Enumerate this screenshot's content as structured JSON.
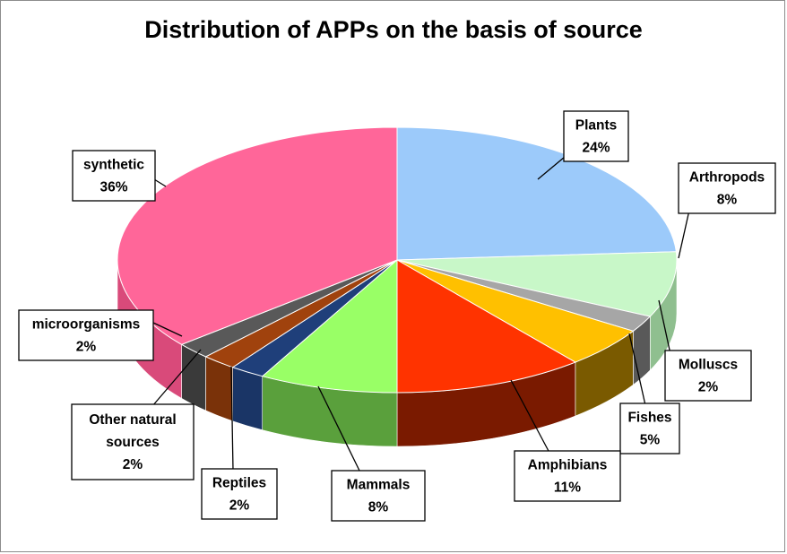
{
  "chart_data": {
    "type": "pie",
    "title": "Distribution of APPs on the basis of source",
    "slices": [
      {
        "label": "Plants",
        "value": 24,
        "percent_label": "24%",
        "color": "#9ccafa",
        "side_color": "#5f8fc4"
      },
      {
        "label": "Arthropods",
        "value": 8,
        "percent_label": "8%",
        "color": "#c8f7c8",
        "side_color": "#8fbf8f"
      },
      {
        "label": "Molluscs",
        "value": 2,
        "percent_label": "2%",
        "color": "#a6a6a6",
        "side_color": "#595959"
      },
      {
        "label": "Fishes",
        "value": 5,
        "percent_label": "5%",
        "color": "#ffc000",
        "side_color": "#7a5a00"
      },
      {
        "label": "Amphibians",
        "value": 11,
        "percent_label": "11%",
        "color": "#ff3300",
        "side_color": "#7a1a00"
      },
      {
        "label": "Mammals",
        "value": 8,
        "percent_label": "8%",
        "color": "#99ff66",
        "side_color": "#5aa03c"
      },
      {
        "label": "Reptiles",
        "value": 2,
        "percent_label": "2%",
        "color": "#1f3f7a",
        "side_color": "#1a3566"
      },
      {
        "label": "Other natural sources",
        "value": 2,
        "percent_label": "2%",
        "color": "#a0420d",
        "side_color": "#7a3209"
      },
      {
        "label": "microorganisms",
        "value": 2,
        "percent_label": "2%",
        "color": "#595959",
        "side_color": "#3a3a3a"
      },
      {
        "label": "synthetic",
        "value": 36,
        "percent_label": "36%",
        "color": "#ff6699",
        "side_color": "#d94a7a"
      }
    ],
    "legend": "none",
    "data_labels": "callouts"
  }
}
